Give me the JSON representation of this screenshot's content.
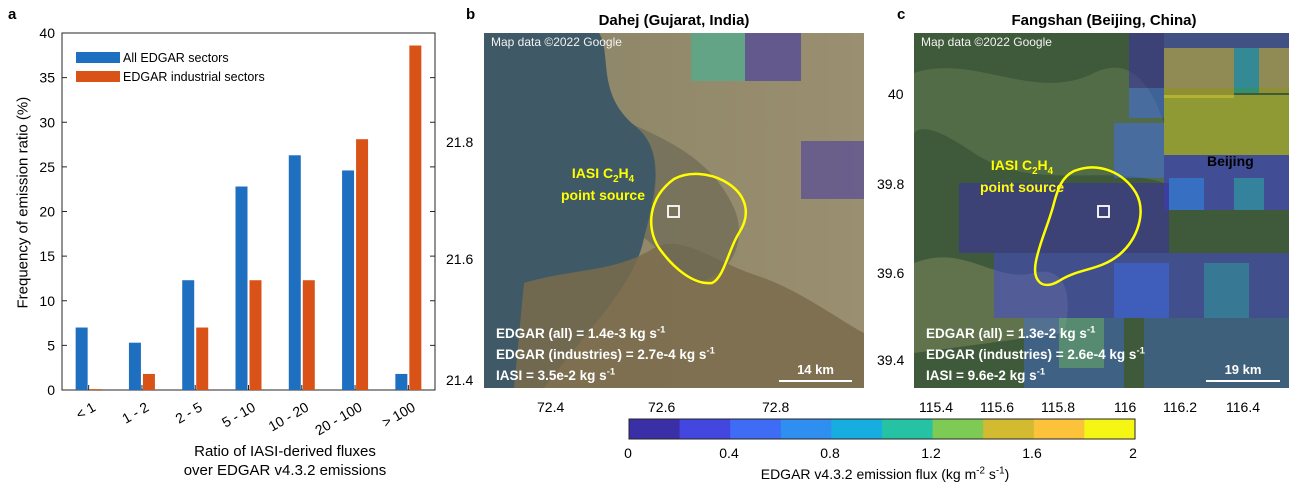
{
  "panel_a": {
    "letter": "a",
    "ylabel": "Frequency of emission ratio (%)",
    "xlabel_line1": "Ratio of IASI-derived fluxes",
    "xlabel_line2": "over EDGAR v4.3.2 emissions"
  },
  "panel_b": {
    "letter": "b",
    "title": "Dahej (Gujarat, India)",
    "credit": "Map data ©2022 Google",
    "source_line1_pre": "IASI C",
    "source_sub1": "2",
    "source_line1_mid": "H",
    "source_sub2": "4",
    "source_line2": "point source",
    "edgar_all": "EDGAR (all) = 1.4e-3 kg s",
    "edgar_ind": "EDGAR (industries) = 2.7e-4 kg s",
    "iasi": "IASI = 3.5e-2 kg s",
    "exp": "-1",
    "scale": "14 km",
    "yticks": [
      "21.8",
      "21.6",
      "21.4"
    ],
    "xticks": [
      "72.4",
      "72.6",
      "72.8"
    ]
  },
  "panel_c": {
    "letter": "c",
    "title": "Fangshan (Beijing, China)",
    "credit": "Map data ©2022 Google",
    "source_line1_pre": "IASI C",
    "source_sub1": "2",
    "source_line1_mid": "H",
    "source_sub2": "4",
    "source_line2": "point source",
    "city": "Beijing",
    "edgar_all": "EDGAR (all) = 1.3e-2 kg s",
    "edgar_ind": "EDGAR (industries) = 2.6e-4 kg s",
    "iasi": "IASI = 9.6e-2 kg s",
    "exp": "-1",
    "scale": "19 km",
    "yticks": [
      "40",
      "39.8",
      "39.6",
      "39.4"
    ],
    "xticks": [
      "115.4",
      "115.6",
      "115.8",
      "116",
      "116.2",
      "116.4"
    ]
  },
  "colorbar": {
    "label_pre": "EDGAR v4.3.2 emission flux (kg m",
    "label_exp1": "-2",
    "label_mid": " s",
    "label_exp2": "-1",
    "label_post": ")",
    "ticks": [
      "0",
      "0.4",
      "0.8",
      "1.2",
      "1.6",
      "2"
    ],
    "colors": [
      "#3b2fa8",
      "#4446e0",
      "#3f6cf5",
      "#2e8ff0",
      "#16aee0",
      "#25c3a4",
      "#7dcb55",
      "#d2bb30",
      "#fcc33a",
      "#f6f615"
    ]
  },
  "chart_data": {
    "type": "bar",
    "categories": [
      "< 1",
      "1 - 2",
      "2 - 5",
      "5 - 10",
      "10 - 20",
      "20 - 100",
      "> 100"
    ],
    "series": [
      {
        "name": "All EDGAR sectors",
        "color": "#1f6fc0",
        "values": [
          7.0,
          5.3,
          12.3,
          22.8,
          26.3,
          24.6,
          1.8
        ]
      },
      {
        "name": "EDGAR industrial sectors",
        "color": "#d95319",
        "values": [
          0.1,
          1.8,
          7.0,
          12.3,
          12.3,
          28.1,
          38.6
        ]
      }
    ],
    "ylim": [
      0,
      40
    ],
    "yticks": [
      0,
      5,
      10,
      15,
      20,
      25,
      30,
      35,
      40
    ],
    "legend_position": "top-left"
  }
}
